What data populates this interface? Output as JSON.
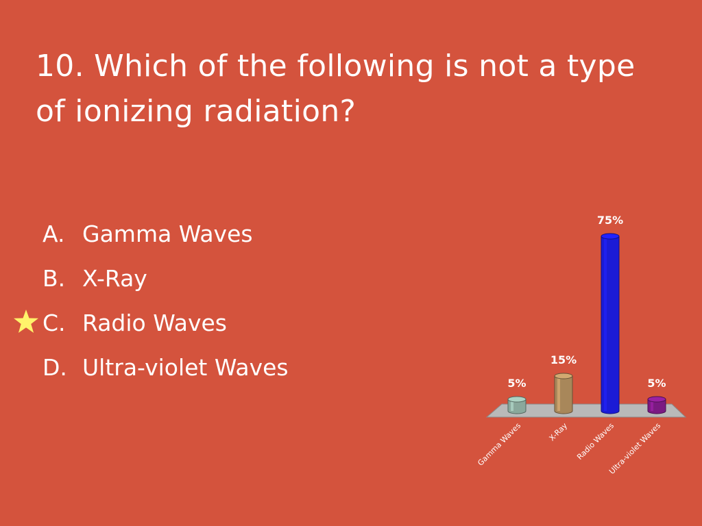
{
  "question": {
    "title": "10. Which of the following is not a type of ionizing radiation?"
  },
  "answers": [
    {
      "letter": "A.",
      "text": "Gamma Waves",
      "correct": false
    },
    {
      "letter": "B.",
      "text": "X-Ray",
      "correct": false
    },
    {
      "letter": "C.",
      "text": "Radio Waves",
      "correct": true
    },
    {
      "letter": "D.",
      "text": "Ultra-violet Waves",
      "correct": false
    }
  ],
  "colors": {
    "background": "#d4533d",
    "star": "#fff36b",
    "floor": "#b9b9b9"
  },
  "chart_data": {
    "type": "bar",
    "categories": [
      "Gamma Waves",
      "X-Ray",
      "Radio Waves",
      "Ultra-violet Waves"
    ],
    "values": [
      5,
      15,
      75,
      5
    ],
    "labels": [
      "5%",
      "15%",
      "75%",
      "5%"
    ],
    "colors": [
      "#8aa89c",
      "#a8875a",
      "#1b1bd6",
      "#7b1a82"
    ],
    "ylim": [
      0,
      75
    ],
    "title": "",
    "xlabel": "",
    "ylabel": "",
    "grid": false,
    "legend": "none"
  }
}
